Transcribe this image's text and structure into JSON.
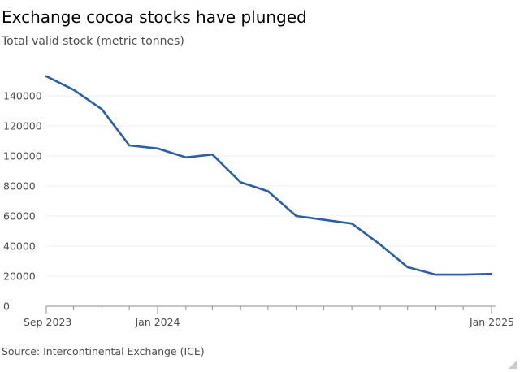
{
  "header": {
    "title": "Exchange cocoa stocks have plunged",
    "subtitle": "Total valid stock (metric tonnes)"
  },
  "footer": {
    "source": "Source: Intercontinental Exchange (ICE)"
  },
  "colors": {
    "line": "#2a5fa5",
    "grid": "#ececec",
    "axis": "#8c8c8c",
    "text": "#4d4d4d"
  },
  "chart_data": {
    "type": "line",
    "title": "Exchange cocoa stocks have plunged",
    "subtitle": "Total valid stock (metric tonnes)",
    "xlabel": "",
    "ylabel": "",
    "ylim": [
      0,
      150000
    ],
    "yticks": [
      0,
      20000,
      40000,
      60000,
      80000,
      100000,
      120000,
      140000
    ],
    "xticks": [
      {
        "date": "2023-09-01",
        "label": "Sep 2023"
      },
      {
        "date": "2024-01-01",
        "label": "Jan 2024"
      },
      {
        "date": "2025-01-01",
        "label": "Jan 2025"
      }
    ],
    "minor_xticks": [
      "2023-10-01",
      "2023-11-01",
      "2023-12-01",
      "2024-02-01",
      "2024-03-01",
      "2024-04-01",
      "2024-05-01",
      "2024-06-01",
      "2024-07-01",
      "2024-08-01",
      "2024-09-01",
      "2024-10-01",
      "2024-11-01",
      "2024-12-01"
    ],
    "grid": true,
    "legend": "none",
    "series": [
      {
        "x": [
          "2023-09-01",
          "2023-10-01",
          "2023-11-01",
          "2023-12-01",
          "2024-01-01",
          "2024-02-01",
          "2024-03-01",
          "2024-04-01",
          "2024-05-01",
          "2024-06-01",
          "2024-07-01",
          "2024-08-01",
          "2024-09-01",
          "2024-10-01",
          "2024-11-01",
          "2024-12-01",
          "2025-01-01"
        ],
        "values": [
          153000,
          144000,
          131000,
          107000,
          105000,
          99000,
          101000,
          82500,
          76500,
          60000,
          57500,
          55000,
          41000,
          26000,
          21000,
          21000,
          21500
        ]
      }
    ]
  }
}
